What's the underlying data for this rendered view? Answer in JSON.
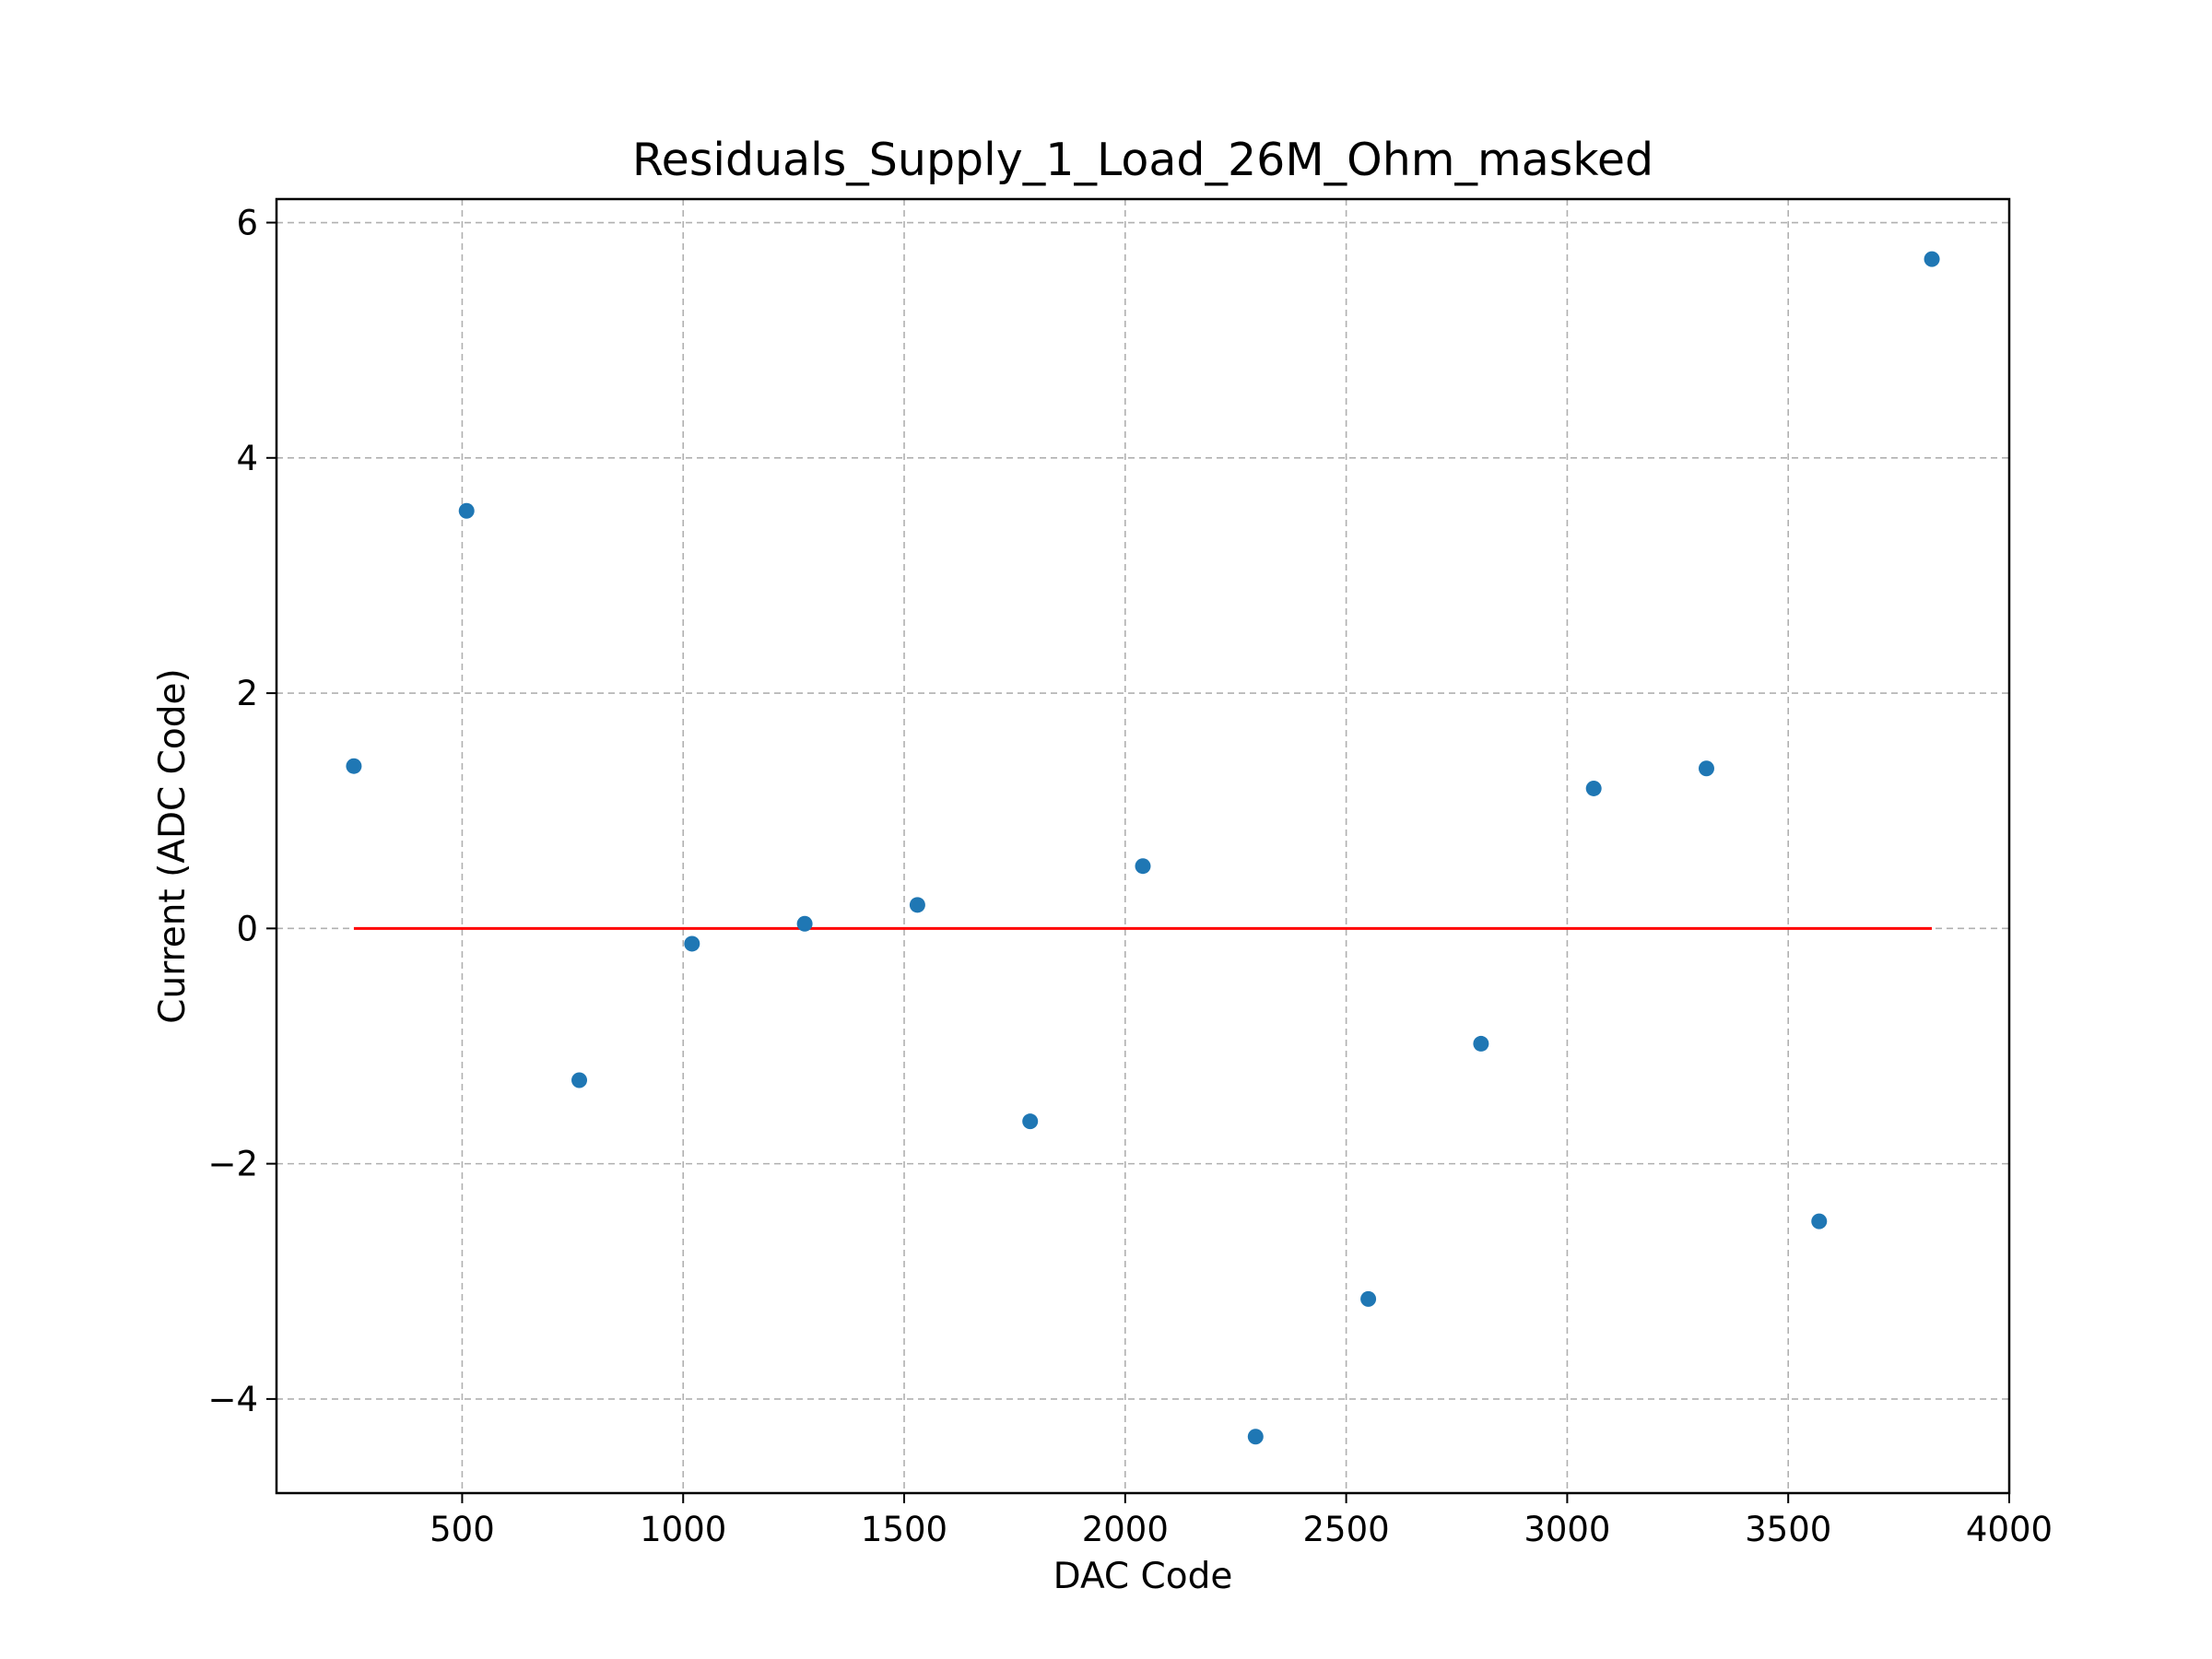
{
  "chart_data": {
    "type": "scatter",
    "title": "Residuals_Supply_1_Load_26M_Ohm_masked",
    "xlabel": "DAC Code",
    "ylabel": "Current (ADC Code)",
    "xlim": [
      80,
      4000
    ],
    "ylim": [
      -4.8,
      6.2
    ],
    "xticks": [
      500,
      1000,
      1500,
      2000,
      2500,
      3000,
      3500,
      4000
    ],
    "yticks": [
      -4,
      -2,
      0,
      2,
      4,
      6
    ],
    "xtick_labels": [
      "500",
      "1000",
      "1500",
      "2000",
      "2500",
      "3000",
      "3500",
      "4000"
    ],
    "ytick_labels": [
      "−4",
      "−2",
      "0",
      "2",
      "4",
      "6"
    ],
    "grid": true,
    "marker_color": "#1f77b4",
    "line_color": "#ff0000",
    "series": [
      {
        "type": "scatter",
        "x": [
          255,
          510,
          765,
          1020,
          1275,
          1530,
          1785,
          2040,
          2295,
          2550,
          2805,
          3060,
          3315,
          3570,
          3825
        ],
        "y": [
          1.38,
          3.55,
          -1.29,
          -0.13,
          0.04,
          0.2,
          -1.64,
          0.53,
          -4.32,
          -3.15,
          -0.98,
          1.19,
          1.36,
          -2.49,
          5.69
        ]
      },
      {
        "type": "line",
        "x": [
          255,
          3825
        ],
        "y": [
          0,
          0
        ]
      }
    ]
  }
}
